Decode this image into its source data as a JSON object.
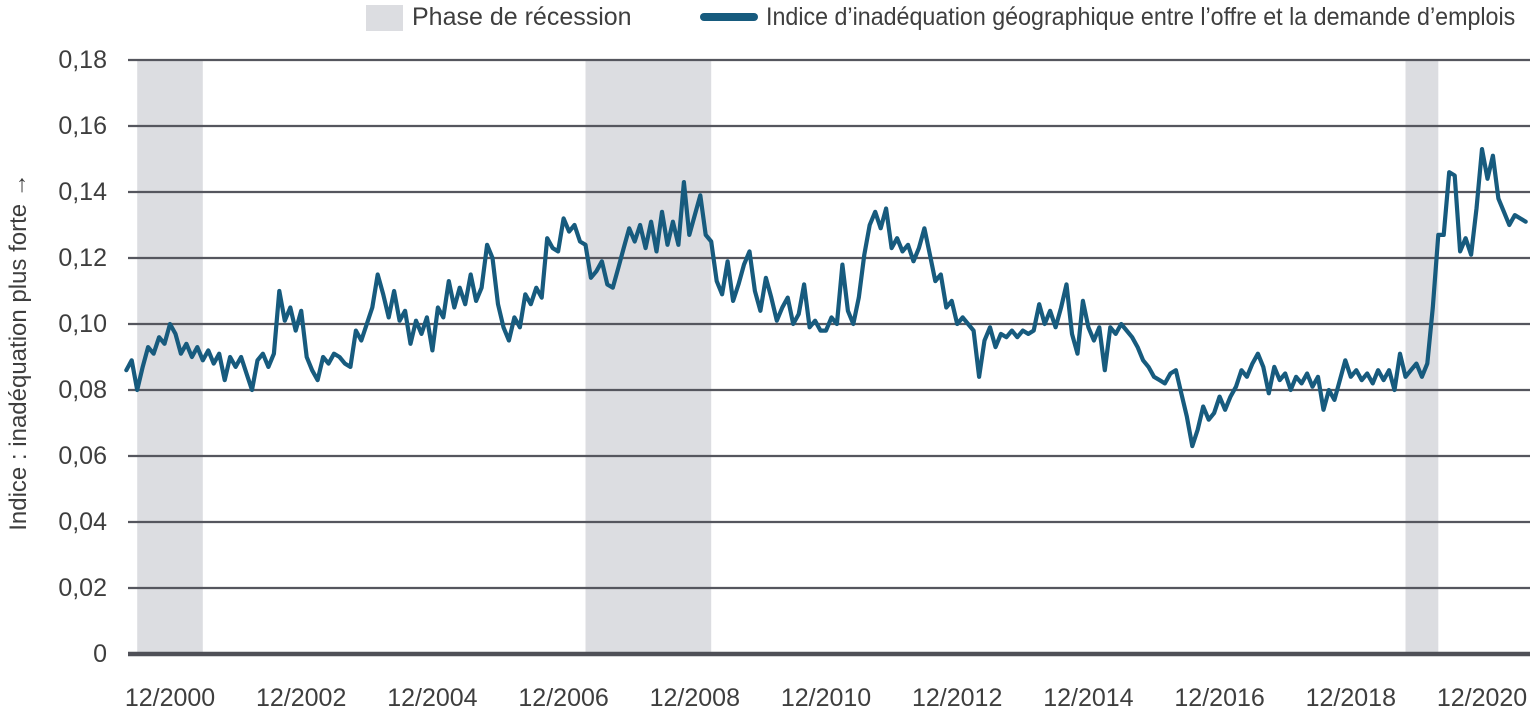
{
  "colors": {
    "recession_band": "#dcdde1",
    "line": "#175b7e",
    "gridline": "#55565e",
    "axis": "#4f5057",
    "text": "#3e3e3e",
    "background": "#ffffff"
  },
  "chart_data": {
    "type": "line",
    "title": "",
    "ylabel": "Indice : inadéquation plus forte →",
    "xlabel": "",
    "ylim": [
      0,
      0.18
    ],
    "grid": "horizontal",
    "legend_position": "top-center",
    "legend": [
      {
        "label": "Phase de récession",
        "swatch": "band"
      },
      {
        "label": "Indice d’inadéquation géographique entre l’offre et la demande d’emplois",
        "swatch": "line"
      }
    ],
    "y_ticks": [
      {
        "label": "0,18",
        "value": 0.18
      },
      {
        "label": "0,16",
        "value": 0.16
      },
      {
        "label": "0,14",
        "value": 0.14
      },
      {
        "label": "0,12",
        "value": 0.12
      },
      {
        "label": "0,10",
        "value": 0.1
      },
      {
        "label": "0,08",
        "value": 0.08
      },
      {
        "label": "0,06",
        "value": 0.06
      },
      {
        "label": "0,04",
        "value": 0.04
      },
      {
        "label": "0,02",
        "value": 0.02
      },
      {
        "label": "0",
        "value": 0
      }
    ],
    "x_ticks": [
      {
        "label": "12/2000",
        "date": "2000-12"
      },
      {
        "label": "12/2002",
        "date": "2002-12"
      },
      {
        "label": "12/2004",
        "date": "2004-12"
      },
      {
        "label": "12/2006",
        "date": "2006-12"
      },
      {
        "label": "12/2008",
        "date": "2008-12"
      },
      {
        "label": "12/2010",
        "date": "2010-12"
      },
      {
        "label": "12/2012",
        "date": "2012-12"
      },
      {
        "label": "12/2014",
        "date": "2014-12"
      },
      {
        "label": "12/2016",
        "date": "2016-12"
      },
      {
        "label": "12/2018",
        "date": "2018-12"
      },
      {
        "label": "12/2020",
        "date": "2020-12"
      }
    ],
    "recession_bands": [
      {
        "start": "2000-06",
        "end": "2001-06"
      },
      {
        "start": "2007-04",
        "end": "2009-03"
      },
      {
        "start": "2019-10",
        "end": "2020-04"
      }
    ],
    "series": [
      {
        "name": "Indice d’inadéquation géographique entre l’offre et la demande d’emplois",
        "color": "#175b7e",
        "frequency": "monthly",
        "start": "2000-04",
        "values": [
          0.086,
          0.089,
          0.08,
          0.087,
          0.093,
          0.091,
          0.096,
          0.094,
          0.1,
          0.097,
          0.091,
          0.094,
          0.09,
          0.093,
          0.089,
          0.092,
          0.088,
          0.091,
          0.083,
          0.09,
          0.087,
          0.09,
          0.085,
          0.08,
          0.089,
          0.091,
          0.087,
          0.091,
          0.11,
          0.101,
          0.105,
          0.098,
          0.104,
          0.09,
          0.086,
          0.083,
          0.09,
          0.088,
          0.091,
          0.09,
          0.088,
          0.087,
          0.098,
          0.095,
          0.1,
          0.105,
          0.115,
          0.109,
          0.102,
          0.11,
          0.101,
          0.104,
          0.094,
          0.101,
          0.097,
          0.102,
          0.092,
          0.105,
          0.102,
          0.113,
          0.105,
          0.111,
          0.106,
          0.115,
          0.107,
          0.111,
          0.124,
          0.12,
          0.106,
          0.099,
          0.095,
          0.102,
          0.099,
          0.109,
          0.106,
          0.111,
          0.108,
          0.126,
          0.123,
          0.122,
          0.132,
          0.128,
          0.13,
          0.125,
          0.124,
          0.114,
          0.116,
          0.119,
          0.112,
          0.111,
          0.117,
          0.123,
          0.129,
          0.125,
          0.13,
          0.123,
          0.131,
          0.122,
          0.134,
          0.124,
          0.131,
          0.124,
          0.143,
          0.127,
          0.133,
          0.139,
          0.127,
          0.125,
          0.113,
          0.109,
          0.119,
          0.107,
          0.112,
          0.118,
          0.122,
          0.11,
          0.104,
          0.114,
          0.108,
          0.101,
          0.105,
          0.108,
          0.1,
          0.103,
          0.112,
          0.099,
          0.101,
          0.098,
          0.098,
          0.102,
          0.1,
          0.118,
          0.104,
          0.1,
          0.108,
          0.121,
          0.13,
          0.134,
          0.129,
          0.135,
          0.123,
          0.126,
          0.122,
          0.124,
          0.119,
          0.123,
          0.129,
          0.121,
          0.113,
          0.115,
          0.105,
          0.107,
          0.1,
          0.102,
          0.1,
          0.098,
          0.084,
          0.095,
          0.099,
          0.093,
          0.097,
          0.096,
          0.098,
          0.096,
          0.098,
          0.097,
          0.098,
          0.106,
          0.1,
          0.104,
          0.099,
          0.105,
          0.112,
          0.097,
          0.091,
          0.107,
          0.099,
          0.095,
          0.099,
          0.086,
          0.099,
          0.097,
          0.1,
          0.098,
          0.096,
          0.093,
          0.089,
          0.087,
          0.084,
          0.083,
          0.082,
          0.085,
          0.086,
          0.079,
          0.072,
          0.063,
          0.068,
          0.075,
          0.071,
          0.073,
          0.078,
          0.074,
          0.078,
          0.081,
          0.086,
          0.084,
          0.088,
          0.091,
          0.087,
          0.079,
          0.087,
          0.083,
          0.085,
          0.08,
          0.084,
          0.082,
          0.085,
          0.081,
          0.084,
          0.074,
          0.08,
          0.077,
          0.083,
          0.089,
          0.084,
          0.086,
          0.083,
          0.085,
          0.082,
          0.086,
          0.083,
          0.086,
          0.08,
          0.091,
          0.084,
          0.086,
          0.088,
          0.084,
          0.088,
          0.105,
          0.127,
          0.127,
          0.146,
          0.145,
          0.122,
          0.126,
          0.121,
          0.135,
          0.153,
          0.144,
          0.151,
          0.138,
          0.134,
          0.13,
          0.133,
          0.132,
          0.131
        ]
      }
    ]
  }
}
